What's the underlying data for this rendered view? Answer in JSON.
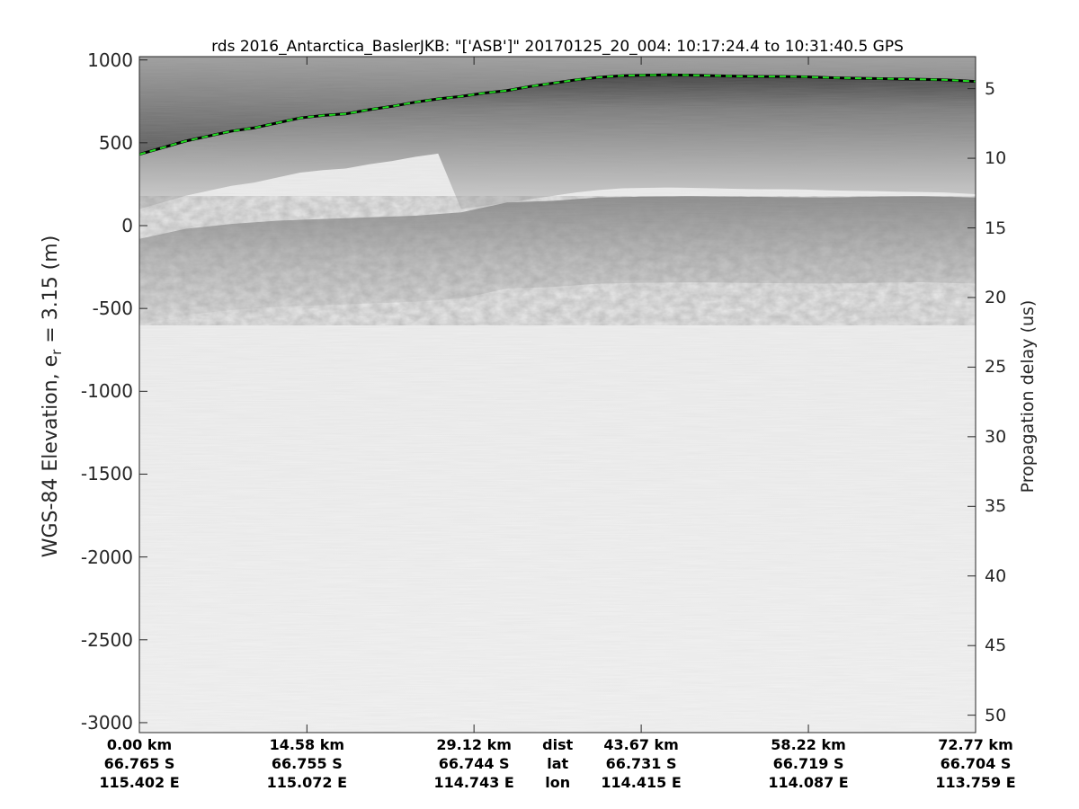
{
  "chart_data": {
    "type": "radargram",
    "title": "rds 2016_Antarctica_BaslerJKB: \"['ASB']\"  20170125_20_004: 10:17:24.4 to 10:31:40.5 GPS",
    "ylabel_prefix": "WGS-84 Elevation, e",
    "ylabel_sub": "r",
    "ylabel_suffix": " = 3.15 (m)",
    "ylabel_right": "Propagation delay (us)",
    "ylim": [
      -3060,
      1020
    ],
    "y_ticks": [
      1000,
      500,
      0,
      -500,
      -1000,
      -1500,
      -2000,
      -2500,
      -3000
    ],
    "y_tick_labels": [
      "1000",
      "500",
      "0",
      "-500",
      "-1000",
      "-1500",
      "-2000",
      "-2500",
      "-3000"
    ],
    "y2_ticks": [
      5,
      10,
      15,
      20,
      25,
      30,
      35,
      40,
      45,
      50
    ],
    "y2_tick_labels": [
      "5",
      "10",
      "15",
      "20",
      "25",
      "30",
      "35",
      "40",
      "45",
      "50"
    ],
    "xlim": [
      0,
      72.77
    ],
    "x_ticks": [
      0,
      14.58,
      29.12,
      43.67,
      58.22,
      72.77
    ],
    "x_tick_columns": [
      {
        "dist": "0.00 km",
        "lat": "66.765 S",
        "lon": "115.402 E"
      },
      {
        "dist": "14.58 km",
        "lat": "66.755 S",
        "lon": "115.072 E"
      },
      {
        "dist": "29.12 km",
        "lat": "66.744 S",
        "lon": "114.743 E"
      },
      {
        "dist": "43.67 km",
        "lat": "66.731 S",
        "lon": "114.415 E"
      },
      {
        "dist": "58.22 km",
        "lat": "66.719 S",
        "lon": "114.087 E"
      },
      {
        "dist": "72.77 km",
        "lat": "66.704 S",
        "lon": "113.759 E"
      }
    ],
    "row_labels": {
      "dist": "dist",
      "lat": "lat",
      "lon": "lon"
    },
    "row_labels_x": 36.4,
    "surface_pick": {
      "color": "#22dd22",
      "x": [
        0,
        2,
        4,
        6,
        8,
        10,
        12,
        14,
        16,
        18,
        20,
        22,
        24,
        26,
        28,
        30,
        32,
        34,
        36,
        38,
        40,
        42,
        44,
        46,
        48,
        50,
        52,
        54,
        56,
        58,
        60,
        62,
        64,
        66,
        68,
        70,
        72.77
      ],
      "y": [
        430,
        470,
        510,
        540,
        570,
        590,
        620,
        650,
        665,
        675,
        700,
        720,
        745,
        765,
        780,
        800,
        815,
        840,
        860,
        880,
        895,
        905,
        908,
        910,
        908,
        905,
        902,
        900,
        900,
        898,
        893,
        890,
        888,
        885,
        883,
        880,
        870
      ]
    },
    "bed_top": {
      "x": [
        0,
        4,
        8,
        12,
        16,
        20,
        24,
        28,
        32,
        36,
        40,
        44,
        48,
        52,
        56,
        60,
        64,
        68,
        72.77
      ],
      "y": [
        -80,
        -20,
        10,
        30,
        40,
        50,
        60,
        80,
        140,
        150,
        170,
        175,
        178,
        175,
        172,
        170,
        175,
        178,
        170
      ]
    },
    "colormap": "gray"
  }
}
